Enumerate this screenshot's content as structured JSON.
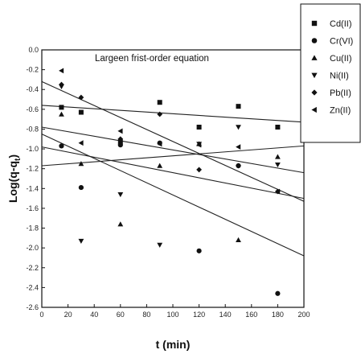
{
  "chart_data": {
    "type": "scatter",
    "title": "Largeen frist-order equation",
    "xlabel": "t (min)",
    "ylabel": "Log(q-q",
    "ylabel_sub": "t",
    "xlim": [
      0,
      200
    ],
    "ylim": [
      -2.6,
      0.0
    ],
    "x_ticks": [
      0,
      20,
      40,
      60,
      80,
      100,
      120,
      140,
      160,
      180,
      200
    ],
    "y_ticks": [
      0.0,
      -0.2,
      -0.4,
      -0.6,
      -0.8,
      -1.0,
      -1.2,
      -1.4,
      -1.6,
      -1.8,
      -2.0,
      -2.2,
      -2.4,
      -2.6
    ],
    "y_tick_labels": [
      "0.0",
      "-0.2",
      "-0.4",
      "-0.6",
      "-0.8",
      "-1.0",
      "-1.2",
      "-1.4",
      "-1.6",
      "-1.8",
      "-2.0",
      "-2.2",
      "-2.4",
      "-2.6"
    ],
    "legend_position": "top-right outside",
    "grid": false,
    "series": [
      {
        "name": "Cd(II)",
        "marker": "square",
        "points": [
          [
            15,
            -0.58
          ],
          [
            30,
            -0.63
          ],
          [
            60,
            -0.93
          ],
          [
            90,
            -0.53
          ],
          [
            120,
            -0.78
          ],
          [
            150,
            -0.57
          ],
          [
            180,
            -0.78
          ]
        ],
        "fit": [
          [
            0,
            -0.56
          ],
          [
            200,
            -0.73
          ]
        ]
      },
      {
        "name": "Cr(VI)",
        "marker": "circle",
        "points": [
          [
            15,
            -0.97
          ],
          [
            30,
            -1.39
          ],
          [
            60,
            -0.96
          ],
          [
            90,
            -0.94
          ],
          [
            120,
            -2.03
          ],
          [
            150,
            -1.17
          ],
          [
            180,
            -2.46
          ]
        ],
        "fit": [
          [
            0,
            -0.85
          ],
          [
            200,
            -2.08
          ]
        ]
      },
      {
        "name": "Cu(II)",
        "marker": "triangle-up",
        "points": [
          [
            15,
            -0.65
          ],
          [
            30,
            -1.15
          ],
          [
            60,
            -1.76
          ],
          [
            90,
            -1.17
          ],
          [
            120,
            -0.95
          ],
          [
            150,
            -1.92
          ],
          [
            180,
            -1.08
          ]
        ],
        "fit": [
          [
            0,
            -1.17
          ],
          [
            200,
            -0.97
          ]
        ]
      },
      {
        "name": "Ni(II)",
        "marker": "triangle-down",
        "points": [
          [
            15,
            -0.37
          ],
          [
            30,
            -1.93
          ],
          [
            60,
            -1.46
          ],
          [
            90,
            -1.97
          ],
          [
            120,
            -0.95
          ],
          [
            150,
            -0.78
          ],
          [
            180,
            -1.16
          ]
        ],
        "fit": [
          [
            0,
            -0.78
          ],
          [
            200,
            -1.24
          ]
        ]
      },
      {
        "name": "Pb(II)",
        "marker": "diamond",
        "points": [
          [
            15,
            -0.35
          ],
          [
            30,
            -0.48
          ],
          [
            60,
            -0.9
          ],
          [
            90,
            -0.65
          ],
          [
            120,
            -1.21
          ],
          [
            150,
            -1.17
          ],
          [
            180,
            -1.43
          ]
        ],
        "fit": [
          [
            0,
            -0.32
          ],
          [
            200,
            -1.53
          ]
        ]
      },
      {
        "name": "Zn(II)",
        "marker": "triangle-left",
        "points": [
          [
            15,
            -0.21
          ],
          [
            30,
            -0.94
          ],
          [
            60,
            -0.82
          ],
          [
            90,
            -0.95
          ],
          [
            120,
            -0.96
          ],
          [
            150,
            -0.98
          ],
          [
            180,
            -1.43
          ]
        ],
        "fit": [
          [
            0,
            -0.98
          ],
          [
            200,
            -1.5
          ]
        ]
      }
    ]
  }
}
